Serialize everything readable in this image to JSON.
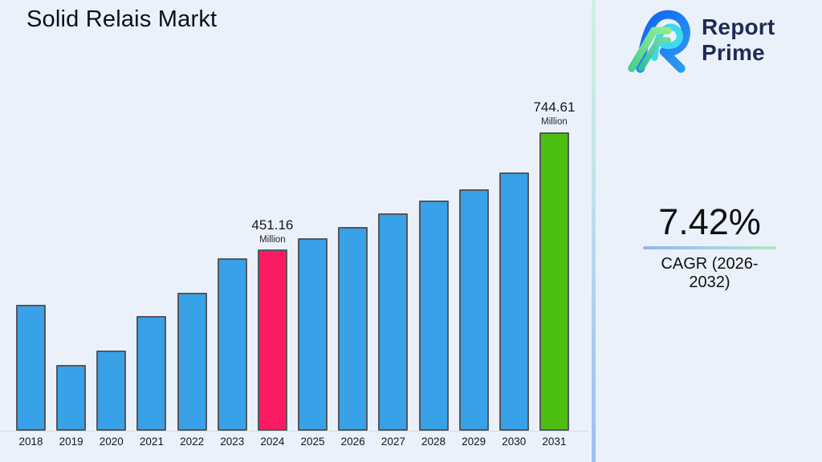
{
  "page": {
    "background": "#EBF1FA"
  },
  "title": "Solid Relais Markt",
  "logo": {
    "line1": "Report",
    "line2": "Prime",
    "text_color": "#1F2B56"
  },
  "stat": {
    "value": "7.42%",
    "label": "CAGR (2026-2032)"
  },
  "chart_data": {
    "type": "bar",
    "title": "Solid Relais Markt",
    "unit": "Million",
    "categories": [
      "2018",
      "2019",
      "2020",
      "2021",
      "2022",
      "2023",
      "2024",
      "2025",
      "2026",
      "2027",
      "2028",
      "2029",
      "2030",
      "2031"
    ],
    "values": [
      314,
      164,
      200,
      286,
      344,
      430,
      451.16,
      480,
      508,
      542,
      574,
      602,
      644,
      744.61
    ],
    "labeled_values": {
      "2024": 451.16,
      "2031": 744.61
    },
    "annotations": [
      {
        "category": "2024",
        "value": "451.16",
        "unit": "Million"
      },
      {
        "category": "2031",
        "value": "744.61",
        "unit": "Million"
      }
    ],
    "bar_colors": {
      "default": "#38A1E8",
      "2024": "#FA1A62",
      "2031": "#4BBE11"
    },
    "bar_border_color": "#55575C",
    "xlabel": "",
    "ylabel": "",
    "ylim": [
      0,
      800
    ],
    "grid": false,
    "legend": false
  }
}
